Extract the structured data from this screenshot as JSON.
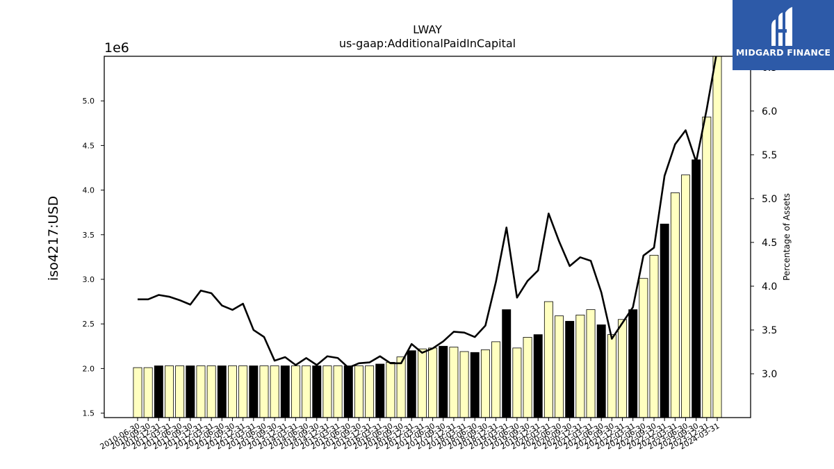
{
  "brand": {
    "name": "MIDGARD FINANCE"
  },
  "chart_data": {
    "type": "bar",
    "title": "LWAY",
    "subtitle": "us-gaap:AdditionalPaidInCapital",
    "ylabel": "iso4217:USD",
    "y_offset_label": "1e6",
    "y2label": "Percentage of Assets",
    "ylim": [
      1.45,
      5.5
    ],
    "y2lim": [
      2.5,
      6.625
    ],
    "yticks": [
      "1.5",
      "2.0",
      "2.5",
      "3.0",
      "3.5",
      "4.0",
      "4.5",
      "5.0"
    ],
    "y2ticks": [
      "3.0",
      "3.5",
      "4.0",
      "4.5",
      "5.0",
      "5.5",
      "6.0",
      "6.5"
    ],
    "categories": [
      "2010-06-30",
      "2010-09-30",
      "2010-12-31",
      "2011-03-31",
      "2011-06-30",
      "2011-09-30",
      "2011-12-31",
      "2012-03-31",
      "2012-06-30",
      "2012-09-30",
      "2012-12-31",
      "2013-03-31",
      "2013-06-30",
      "2013-09-30",
      "2013-12-31",
      "2014-03-31",
      "2014-06-30",
      "2014-09-30",
      "2014-12-31",
      "2015-03-31",
      "2015-06-30",
      "2015-09-30",
      "2015-12-31",
      "2016-03-31",
      "2016-06-30",
      "2016-09-30",
      "2016-12-31",
      "2017-03-31",
      "2017-06-30",
      "2017-09-30",
      "2017-12-31",
      "2018-03-31",
      "2018-06-30",
      "2018-09-30",
      "2018-12-31",
      "2019-03-31",
      "2019-06-30",
      "2019-09-30",
      "2019-12-31",
      "2020-03-31",
      "2020-06-30",
      "2020-09-30",
      "2020-12-31",
      "2021-03-31",
      "2021-06-30",
      "2021-09-30",
      "2021-12-31",
      "2022-03-31",
      "2022-06-30",
      "2022-09-30",
      "2022-12-31",
      "2023-03-31",
      "2023-06-30",
      "2023-09-30",
      "2023-12-31",
      "2024-03-31"
    ],
    "highlight": [
      false,
      false,
      true,
      false,
      false,
      true,
      false,
      false,
      true,
      false,
      false,
      true,
      false,
      false,
      true,
      false,
      false,
      true,
      false,
      false,
      true,
      false,
      false,
      true,
      false,
      false,
      true,
      false,
      false,
      true,
      false,
      false,
      true,
      false,
      false,
      true,
      false,
      false,
      true,
      false,
      false,
      true,
      false,
      false,
      true,
      false,
      false,
      true,
      false,
      false,
      true,
      false,
      false,
      true,
      false,
      false
    ],
    "bar_colors": {
      "default": "#ffffc0",
      "highlight": "#000000",
      "edge": "#000000"
    },
    "series": [
      {
        "axis": "left",
        "kind": "bar",
        "values": [
          2.01,
          2.01,
          2.03,
          2.03,
          2.03,
          2.03,
          2.03,
          2.03,
          2.03,
          2.03,
          2.03,
          2.03,
          2.03,
          2.03,
          2.03,
          2.03,
          2.03,
          2.03,
          2.03,
          2.03,
          2.03,
          2.03,
          2.03,
          2.05,
          2.07,
          2.13,
          2.2,
          2.22,
          2.23,
          2.25,
          2.24,
          2.19,
          2.18,
          2.21,
          2.3,
          2.66,
          2.23,
          2.35,
          2.38,
          2.75,
          2.59,
          2.53,
          2.6,
          2.66,
          2.49,
          2.38,
          2.55,
          2.66,
          3.01,
          3.27,
          3.62,
          3.97,
          4.17,
          4.34,
          4.82,
          5.55
        ]
      },
      {
        "axis": "right",
        "kind": "line",
        "color": "#000000",
        "values": [
          3.85,
          3.85,
          3.9,
          3.88,
          3.84,
          3.79,
          3.95,
          3.92,
          3.78,
          3.73,
          3.8,
          3.5,
          3.42,
          3.15,
          3.19,
          3.1,
          3.18,
          3.1,
          3.2,
          3.18,
          3.07,
          3.12,
          3.13,
          3.2,
          3.12,
          3.12,
          3.34,
          3.24,
          3.29,
          3.37,
          3.48,
          3.47,
          3.42,
          3.55,
          4.05,
          4.67,
          3.87,
          4.06,
          4.18,
          4.83,
          4.51,
          4.23,
          4.33,
          4.29,
          3.93,
          3.4,
          3.58,
          3.76,
          4.35,
          4.44,
          5.26,
          5.62,
          5.78,
          5.42,
          6.02,
          6.7
        ]
      }
    ]
  }
}
